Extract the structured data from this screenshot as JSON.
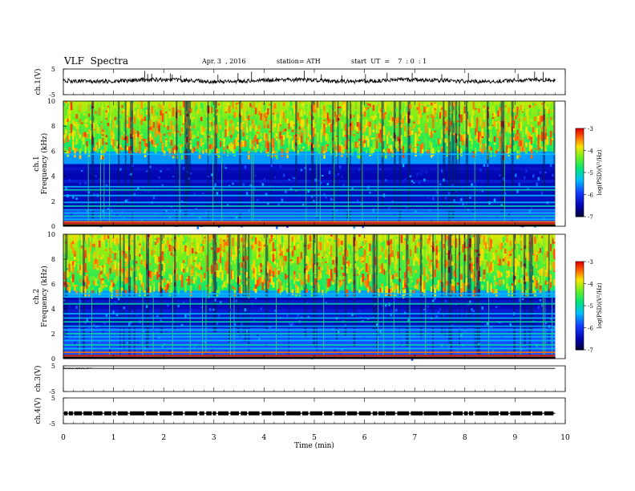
{
  "header": {
    "title": "VLF  Spectra",
    "date": "Apr. 3  , 2016",
    "station": "station= ATH",
    "start_ut": "start  UT  =    7  : 0  : 1"
  },
  "chart_data": [
    {
      "id": "ch1-voltage",
      "type": "line",
      "ylabel": "ch.1(V)",
      "ylim": [
        -5,
        5
      ],
      "y_ticks": [
        "5",
        "-5"
      ],
      "baseline": 0.5,
      "spikes_min": [
        1.62,
        1.68,
        1.76,
        2.13,
        2.17,
        2.34,
        3.08,
        3.48,
        3.75,
        4.8,
        5.14,
        5.55,
        6.02,
        6.45,
        6.95,
        7.54,
        8.07,
        9.06,
        9.39,
        9.56
      ]
    },
    {
      "id": "ch1-spectrogram",
      "type": "heatmap",
      "channel": "ch.1",
      "ylabel": "Frequency  (kHz)",
      "ylim": [
        0,
        10
      ],
      "y_ticks": [
        "10",
        "8",
        "6",
        "4",
        "2",
        "0"
      ],
      "colorbar": {
        "label": "log(PSD)(V²/Hz)",
        "min": -7,
        "max": -3,
        "ticks": [
          "-3",
          "-4",
          "-5",
          "-6",
          "-7"
        ]
      },
      "bands_khz": [
        0.15,
        0.35,
        0.55,
        0.8,
        1.05,
        1.3,
        1.6,
        1.9,
        2.45,
        2.9,
        3.15,
        5.75
      ],
      "dark_zone_khz": [
        1.2,
        5.0
      ],
      "bright_zone_khz": [
        6.0,
        10.0
      ]
    },
    {
      "id": "ch2-spectrogram",
      "type": "heatmap",
      "channel": "ch.2",
      "ylabel": "Frequency  (kHz)",
      "ylim": [
        0,
        10
      ],
      "y_ticks": [
        "10",
        "8",
        "6",
        "4",
        "2",
        "0"
      ],
      "colorbar": {
        "label": "log(PSD)(V²/Hz)",
        "min": -7,
        "max": -3,
        "ticks": [
          "-3",
          "-4",
          "-5",
          "-6",
          "-7"
        ]
      },
      "bands_khz": [
        0.2,
        0.5,
        0.8,
        1.1,
        1.45,
        1.75,
        2.0,
        2.3,
        2.6,
        2.95,
        3.25,
        3.6,
        4.4,
        4.95,
        5.2
      ],
      "dark_zone_khz": [
        2.5,
        5.0
      ],
      "bright_zone_khz": [
        5.5,
        10.0
      ]
    },
    {
      "id": "ch3-voltage",
      "type": "line",
      "ylabel": "ch.3(V)",
      "ylim": [
        -5,
        5
      ],
      "y_ticks": [
        "5",
        "-5"
      ],
      "baseline": 4.0
    },
    {
      "id": "ch4-voltage",
      "type": "line",
      "ylabel": "ch.4(V)",
      "ylim": [
        -5,
        5
      ],
      "y_ticks": [
        "5",
        "-5"
      ],
      "baseline": -1.0
    }
  ],
  "x_axis": {
    "label": "Time  (min)",
    "range": [
      0,
      10
    ],
    "ticks": [
      "0",
      "1",
      "2",
      "3",
      "4",
      "5",
      "6",
      "7",
      "8",
      "9",
      "10"
    ],
    "data_end_min": 9.8
  }
}
